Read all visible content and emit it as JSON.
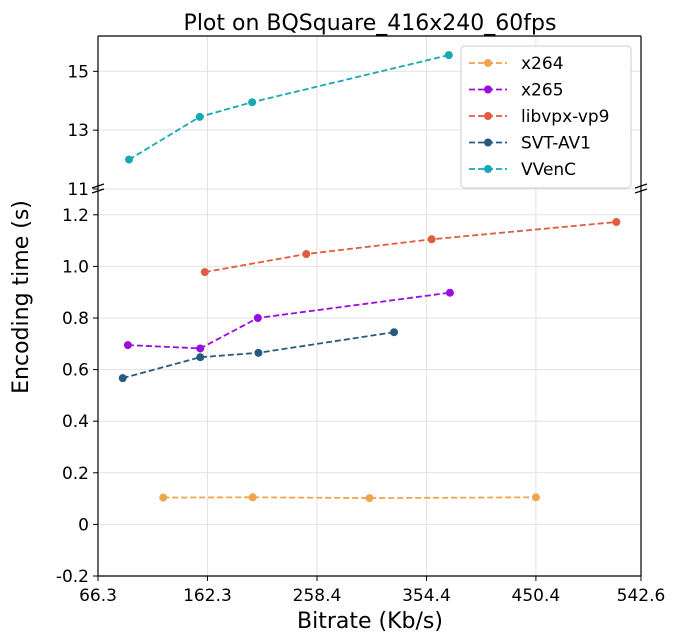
{
  "chart_data": {
    "type": "line",
    "title": "Plot on BQSquare_416x240_60fps",
    "xlabel": "Bitrate (Kb/s)",
    "ylabel": "Encoding time (s)",
    "broken_y_axis": true,
    "grid": true,
    "legend_position": "top-right",
    "x_ticks": [
      "66.3",
      "162.3",
      "258.4",
      "354.4",
      "450.4",
      "542.6"
    ],
    "x_tick_values": [
      66.3,
      162.3,
      258.4,
      354.4,
      450.4,
      542.6
    ],
    "xlim": [
      66.3,
      542.6
    ],
    "upper_panel": {
      "ylim": [
        11,
        16.2
      ],
      "y_ticks": [
        "11",
        "13",
        "15"
      ],
      "y_tick_values": [
        11,
        13,
        15
      ]
    },
    "lower_panel": {
      "ylim": [
        -0.2,
        1.3
      ],
      "y_ticks": [
        "-0.2",
        "0",
        "0.2",
        "0.4",
        "0.6",
        "0.8",
        "1.0",
        "1.2"
      ],
      "y_tick_values": [
        -0.2,
        0,
        0.2,
        0.4,
        0.6,
        0.8,
        1.0,
        1.2
      ]
    },
    "series": [
      {
        "name": "x264",
        "color": "#f0a44e",
        "panel": "lower",
        "x": [
          123.5,
          202.0,
          304.5,
          450.4
        ],
        "y": [
          0.104,
          0.105,
          0.102,
          0.105
        ]
      },
      {
        "name": "x265",
        "color": "#9b0cdf",
        "panel": "lower",
        "x": [
          92.5,
          156.0,
          206.5,
          375.0
        ],
        "y": [
          0.695,
          0.682,
          0.8,
          0.898
        ]
      },
      {
        "name": "libvpx-vp9",
        "color": "#e15b40",
        "panel": "lower",
        "x": [
          160.0,
          249.0,
          359.0,
          521.0
        ],
        "y": [
          0.978,
          1.048,
          1.105,
          1.172
        ]
      },
      {
        "name": "SVT-AV1",
        "color": "#275a7f",
        "panel": "lower",
        "x": [
          88.0,
          156.0,
          207.0,
          326.0
        ],
        "y": [
          0.567,
          0.648,
          0.665,
          0.745
        ]
      },
      {
        "name": "VVenC",
        "color": "#17a8b5",
        "panel": "upper",
        "x": [
          93.5,
          155.5,
          201.5,
          374.0
        ],
        "y": [
          12.0,
          13.45,
          13.95,
          15.55
        ]
      }
    ]
  }
}
